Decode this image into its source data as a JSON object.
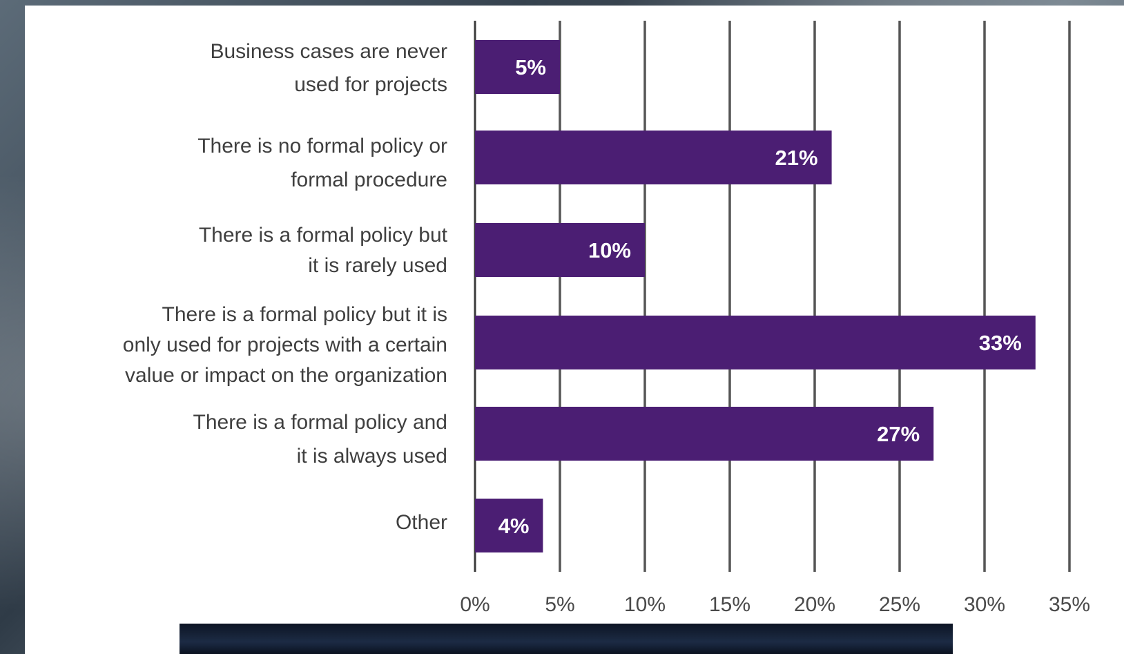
{
  "chart_data": {
    "type": "bar",
    "orientation": "horizontal",
    "categories": [
      [
        "Business cases are never",
        "used for projects"
      ],
      [
        "There is no formal policy or",
        "formal procedure"
      ],
      [
        "There is a formal policy but",
        "it is rarely used"
      ],
      [
        "There is a formal policy but it is",
        "only used for projects with a certain",
        "value or impact on the organization"
      ],
      [
        "There is a formal policy and",
        "it is always used"
      ],
      [
        "Other"
      ]
    ],
    "values": [
      5,
      21,
      10,
      33,
      27,
      4
    ],
    "value_labels": [
      "5%",
      "21%",
      "10%",
      "33%",
      "27%",
      "4%"
    ],
    "xlim": [
      0,
      35
    ],
    "xticks": [
      "0%",
      "5%",
      "10%",
      "15%",
      "20%",
      "25%",
      "30%",
      "35%"
    ],
    "grid": "vertical",
    "title": "",
    "xlabel": "",
    "ylabel": "",
    "colors": {
      "bar": "#4b1e73",
      "grid": "#555555",
      "label_text": "#3f3f3f",
      "value_text": "#ffffff"
    }
  }
}
